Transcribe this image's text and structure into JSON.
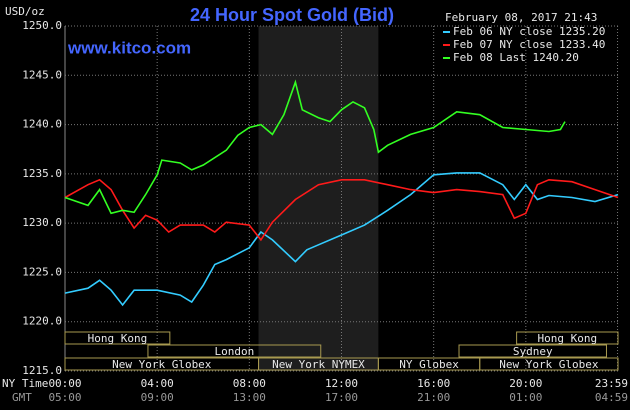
{
  "chart_data": {
    "type": "line",
    "title": "24 Hour Spot Gold (Bid)",
    "website": "www.kitco.com",
    "y_label": "USD/oz",
    "timestamp": "February 08, 2017 21:43",
    "x_row_labels": [
      "NY Time",
      "GMT"
    ],
    "xlim": [
      0,
      24
    ],
    "ylim": [
      1215,
      1250
    ],
    "xticks": [
      {
        "value": 0,
        "label": "00:00"
      },
      {
        "value": 4,
        "label": "04:00"
      },
      {
        "value": 8,
        "label": "08:00"
      },
      {
        "value": 12,
        "label": "12:00"
      },
      {
        "value": 16,
        "label": "16:00"
      },
      {
        "value": 20,
        "label": "20:00"
      },
      {
        "value": 23.98,
        "label": "23:59"
      }
    ],
    "gmt_labels": [
      "05:00",
      "09:00",
      "13:00",
      "17:00",
      "21:00",
      "01:00",
      "04:59"
    ],
    "yticks": [
      {
        "value": 1215,
        "label": "1215.0"
      },
      {
        "value": 1220,
        "label": "1220.0"
      },
      {
        "value": 1225,
        "label": "1225.0"
      },
      {
        "value": 1230,
        "label": "1230.0"
      },
      {
        "value": 1235,
        "label": "1235.0"
      },
      {
        "value": 1240,
        "label": "1240.0"
      },
      {
        "value": 1245,
        "label": "1245.0"
      },
      {
        "value": 1250,
        "label": "1250.0"
      }
    ],
    "grid": true,
    "highlight_xlim": [
      8.4,
      13.6
    ],
    "sessions": [
      [
        {
          "label": "Hong Kong",
          "start": 0,
          "end": 4.55
        },
        {
          "label": "Hong Kong",
          "start": 19.6,
          "end": 24
        }
      ],
      [
        {
          "label": "London",
          "start": 3.6,
          "end": 11.1
        },
        {
          "label": "Sydney",
          "start": 17.1,
          "end": 23.5
        }
      ],
      [
        {
          "label": "New York Globex",
          "start": 0,
          "end": 8.4
        },
        {
          "label": "New York NYMEX",
          "start": 8.4,
          "end": 13.6
        },
        {
          "label": "NY Globex",
          "start": 13.6,
          "end": 18
        },
        {
          "label": "New York Globex",
          "start": 18,
          "end": 24
        }
      ]
    ],
    "series": [
      {
        "name": "Feb 06 NY close 1235.20",
        "color": "#33ccff",
        "x": [
          0,
          1,
          1.5,
          2,
          2.5,
          3,
          4,
          5,
          5.5,
          6,
          6.5,
          7,
          8,
          8.5,
          9,
          10,
          10.5,
          11,
          12,
          13,
          14,
          15,
          16,
          17,
          18,
          19,
          19.5,
          20,
          20.5,
          21,
          22,
          23,
          24
        ],
        "values": [
          1222.9,
          1223.4,
          1224.2,
          1223.2,
          1221.7,
          1223.2,
          1223.2,
          1222.7,
          1222.0,
          1223.7,
          1225.8,
          1226.3,
          1227.5,
          1229.1,
          1228.3,
          1226.1,
          1227.3,
          1227.8,
          1228.8,
          1229.8,
          1231.3,
          1232.9,
          1234.9,
          1235.1,
          1235.1,
          1233.9,
          1232.4,
          1233.9,
          1232.4,
          1232.8,
          1232.6,
          1232.2,
          1232.9
        ]
      },
      {
        "name": "Feb 07 NY close 1233.40",
        "color": "#ff1a1a",
        "x": [
          0,
          1,
          1.5,
          2,
          2.5,
          3,
          3.5,
          4,
          4.5,
          5,
          6,
          6.5,
          7,
          8,
          8.5,
          9,
          10,
          11,
          12,
          13,
          14,
          15,
          16,
          17,
          18,
          19,
          19.5,
          20,
          20.5,
          21,
          22,
          23,
          24
        ],
        "values": [
          1232.6,
          1233.9,
          1234.4,
          1233.4,
          1231.3,
          1229.5,
          1230.8,
          1230.3,
          1229.1,
          1229.8,
          1229.8,
          1229.1,
          1230.1,
          1229.8,
          1228.3,
          1230.1,
          1232.4,
          1233.9,
          1234.4,
          1234.4,
          1233.9,
          1233.4,
          1233.1,
          1233.4,
          1233.2,
          1232.9,
          1230.5,
          1231.0,
          1233.9,
          1234.4,
          1234.2,
          1233.4,
          1232.6
        ]
      },
      {
        "name": "Feb 08 Last 1240.20",
        "color": "#33ff22",
        "x": [
          0,
          1,
          1.5,
          2,
          2.5,
          3,
          3.5,
          4,
          4.2,
          5,
          5.5,
          6,
          7,
          7.5,
          8,
          8.5,
          9,
          9.5,
          10,
          10.3,
          11,
          11.5,
          12,
          12.5,
          13,
          13.4,
          13.6,
          14,
          15,
          16,
          17,
          18,
          19,
          20,
          21,
          21.5,
          21.7
        ],
        "values": [
          1232.6,
          1231.8,
          1233.4,
          1231.0,
          1231.3,
          1231.1,
          1232.9,
          1234.9,
          1236.4,
          1236.1,
          1235.4,
          1235.9,
          1237.4,
          1238.9,
          1239.7,
          1240.0,
          1239.0,
          1241.0,
          1244.3,
          1241.5,
          1240.7,
          1240.3,
          1241.5,
          1242.3,
          1241.7,
          1239.5,
          1237.2,
          1237.9,
          1239.0,
          1239.7,
          1241.3,
          1241.0,
          1239.7,
          1239.5,
          1239.3,
          1239.5,
          1240.3
        ]
      }
    ]
  }
}
